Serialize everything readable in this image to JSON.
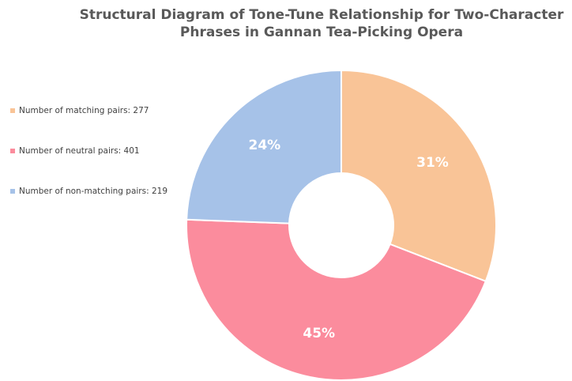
{
  "chart_data": {
    "type": "pie",
    "donut": true,
    "title_lines": [
      "Structural Diagram of Tone-Tune Relationship for Two-Character",
      "Phrases in Gannan Tea-Picking Opera"
    ],
    "legend_position": "left",
    "slices": [
      {
        "legend_label": "Number of matching pairs: 277",
        "value": 277,
        "percent_label": "31%",
        "color": "#F9C497"
      },
      {
        "legend_label": "Number of neutral pairs: 401",
        "value": 401,
        "percent_label": "45%",
        "color": "#FB8C9D"
      },
      {
        "legend_label": "Number of non-matching pairs: 219",
        "value": 219,
        "percent_label": "24%",
        "color": "#A6C2E8"
      }
    ]
  }
}
